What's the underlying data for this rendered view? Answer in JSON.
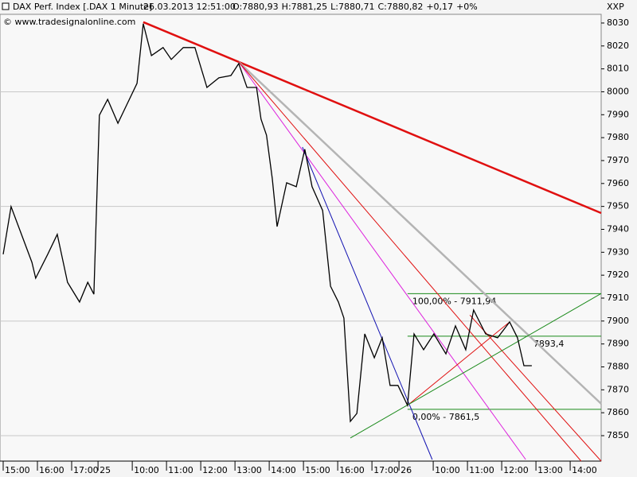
{
  "chart_data": {
    "type": "line",
    "title": "DAX Perf. Index [.DAX  1 Minute]",
    "timestamp": "26.03.2013 12:51:00",
    "quote": [
      {
        "text": "O:7880,93",
        "color": "#1a9b1a"
      },
      {
        "text": "H:7881,25",
        "color": "#000000"
      },
      {
        "text": "L:7880,71",
        "color": "#000000"
      },
      {
        "text": "C:7880,82",
        "color": "#1a9b1a"
      },
      {
        "text": "+0,17",
        "color": "#1a9b1a"
      },
      {
        "text": "+0%",
        "color": "#1a9b1a"
      }
    ],
    "source": "© www.tradesignalonline.com",
    "axis_label": "XXP",
    "xlim": [
      -0.093,
      17.465
    ],
    "xticks": [
      {
        "value": 0,
        "label": "15:00"
      },
      {
        "value": 1,
        "label": "16:00"
      },
      {
        "value": 2,
        "label": "17:00"
      },
      {
        "value": 2.77,
        "label": "25"
      },
      {
        "value": 3.77,
        "label": "10:00"
      },
      {
        "value": 4.77,
        "label": "11:00"
      },
      {
        "value": 5.77,
        "label": "12:00"
      },
      {
        "value": 6.77,
        "label": "13:00"
      },
      {
        "value": 7.77,
        "label": "14:00"
      },
      {
        "value": 8.77,
        "label": "15:00"
      },
      {
        "value": 9.77,
        "label": "16:00"
      },
      {
        "value": 10.77,
        "label": "17:00"
      },
      {
        "value": 11.56,
        "label": "26"
      },
      {
        "value": 12.56,
        "label": "10:00"
      },
      {
        "value": 13.56,
        "label": "11:00"
      },
      {
        "value": 14.56,
        "label": "12:00"
      },
      {
        "value": 15.56,
        "label": "13:00"
      },
      {
        "value": 16.56,
        "label": "14:00"
      }
    ],
    "ylim": [
      7838.9,
      8033.8
    ],
    "yticks": [
      7850,
      7860,
      7870,
      7880,
      7890,
      7900,
      7910,
      7920,
      7930,
      7940,
      7950,
      7960,
      7970,
      7980,
      7990,
      8000,
      8010,
      8020,
      8030
    ],
    "grid_lines": [
      7850,
      7900,
      7950,
      8000
    ],
    "series": [
      {
        "color": "#000000",
        "x": [
          0,
          0.23,
          0.49,
          0.84,
          0.95,
          1.3,
          1.58,
          1.88,
          2.23,
          2.47,
          2.65,
          2.81,
          3.05,
          3.35,
          3.63,
          3.91,
          4.09,
          4.33,
          4.67,
          4.91,
          5.26,
          5.6,
          5.95,
          6.3,
          6.65,
          6.88,
          7.12,
          7.4,
          7.53,
          7.69,
          7.86,
          8.0,
          8.28,
          8.56,
          8.81,
          9.02,
          9.33,
          9.56,
          9.79,
          9.95,
          10.14,
          10.33,
          10.56,
          10.84,
          11.07,
          11.3,
          11.53,
          11.81,
          12.0,
          12.28,
          12.58,
          12.93,
          13.21,
          13.51,
          13.74,
          14.09,
          14.44,
          14.79,
          15.02,
          15.21,
          15.44
        ],
        "values": [
          7929.1,
          7949.9,
          7939.5,
          7925.6,
          7918.7,
          7929.1,
          7937.8,
          7916.9,
          7908.3,
          7916.9,
          7911.7,
          7989.8,
          7996.7,
          7986.3,
          7995.0,
          8003.7,
          8029.7,
          8015.8,
          8019.3,
          8014.1,
          8019.3,
          8019.3,
          8001.9,
          8006.1,
          8007.1,
          8012.3,
          8001.9,
          8001.9,
          7988.1,
          7981.1,
          7962.0,
          7941.2,
          7960.3,
          7958.6,
          7974.9,
          7958.6,
          7948.2,
          7915.2,
          7908.3,
          7901.3,
          7856.2,
          7859.7,
          7894.4,
          7884.0,
          7892.7,
          7871.9,
          7871.9,
          7863.2,
          7894.4,
          7887.5,
          7894.4,
          7885.7,
          7897.9,
          7887.5,
          7904.8,
          7894.4,
          7892.7,
          7899.6,
          7892.7,
          7880.5,
          7880.5
        ]
      }
    ],
    "trendlines": [
      {
        "color": "#e01010",
        "x": [
          4.09,
          17.465
        ],
        "values": [
          8030.4,
          7947.1
        ]
      },
      {
        "color": "#b4b4b4",
        "x": [
          6.88,
          17.465
        ],
        "values": [
          8013.0,
          7863.9
        ]
      },
      {
        "color": "#dd22dd",
        "x": [
          6.88,
          15.26
        ],
        "values": [
          8013.0,
          7839.6
        ]
      },
      {
        "color": "#e01010",
        "x": [
          6.88,
          16.88
        ],
        "values": [
          8013.0,
          7838.9
        ]
      },
      {
        "color": "#1010b0",
        "x": [
          8.74,
          12.53
        ],
        "values": [
          7975.9,
          7839.6
        ]
      },
      {
        "color": "#e01010",
        "x": [
          13.63,
          17.465
        ],
        "values": [
          7902.6,
          7838.9
        ]
      },
      {
        "color": "#e01010",
        "x": [
          11.81,
          14.79
        ],
        "values": [
          7863.2,
          7899.6
        ]
      },
      {
        "color": "#1a8a1a",
        "x": [
          10.14,
          17.465
        ],
        "values": [
          7849.0,
          7912.0
        ]
      }
    ],
    "fib_levels": [
      {
        "value": 7911.94,
        "label": "100,00% - 7911,94"
      },
      {
        "value": 7893.4,
        "label": "7893,4"
      },
      {
        "value": 7861.5,
        "label": "0,00% - 7861,5"
      }
    ],
    "fib_color": "#1a8a1a"
  }
}
